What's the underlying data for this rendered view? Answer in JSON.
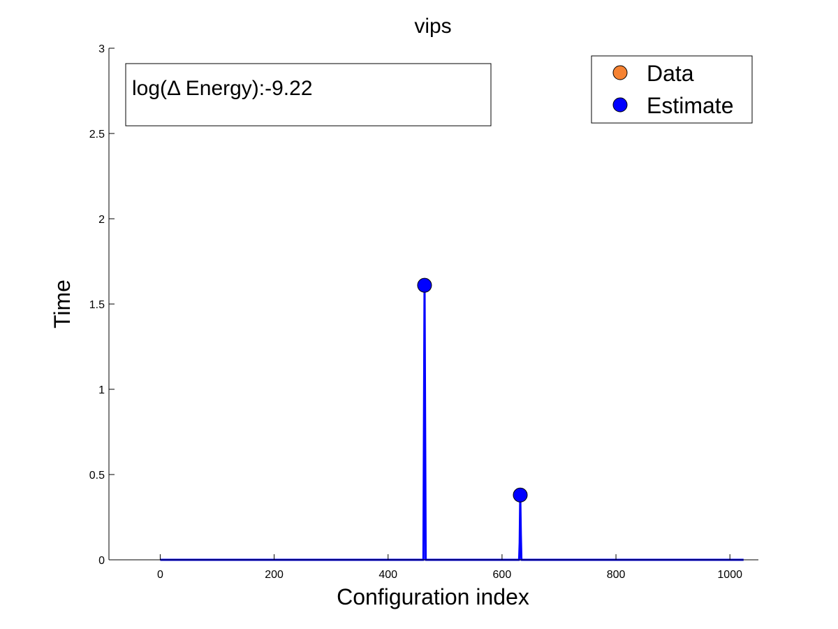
{
  "chart_data": {
    "type": "line",
    "title": "vips",
    "xlabel": "Configuration index",
    "ylabel": "Time",
    "xlim": [
      -90,
      1050
    ],
    "ylim": [
      0,
      3
    ],
    "xticks": [
      0,
      200,
      400,
      600,
      800,
      1000
    ],
    "xtick_labels": [
      "0",
      "200",
      "400",
      "600",
      "800",
      "1000"
    ],
    "yticks": [
      0,
      0.5,
      1,
      1.5,
      2,
      2.5,
      3
    ],
    "ytick_labels": [
      "0",
      "0.5",
      "1",
      "1.5",
      "2",
      "2.5",
      "3"
    ],
    "grid": false,
    "legend_position": "top-right",
    "annotation": "log(Δ Energy):-9.22",
    "series": [
      {
        "name": "Data",
        "color": "#f58232",
        "marker": "circle",
        "x": [],
        "y": []
      },
      {
        "name": "Estimate",
        "color": "#0000ff",
        "marker": "circle",
        "line_x": [
          0,
          462,
          463,
          464,
          465,
          466,
          630,
          631,
          632,
          633,
          634,
          1024
        ],
        "line_y": [
          0,
          0,
          0.8,
          1.61,
          0.8,
          0,
          0,
          0.1,
          0.38,
          0.15,
          0,
          0
        ],
        "points": [
          {
            "x": 464,
            "y": 1.61
          },
          {
            "x": 632,
            "y": 0.38
          }
        ]
      }
    ]
  }
}
